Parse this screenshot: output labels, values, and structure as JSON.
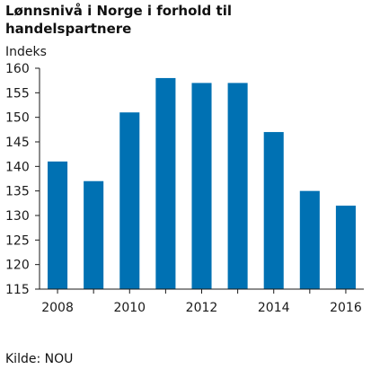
{
  "chart_data": {
    "type": "bar",
    "title": "Lønnsnivå i Norge i forhold til handelspartnere",
    "ylabel": "Indeks",
    "xlabel": "",
    "x": [
      2008,
      2009,
      2010,
      2011,
      2012,
      2013,
      2014,
      2015,
      2016
    ],
    "values": [
      141,
      137,
      151,
      158,
      157,
      157,
      147,
      135,
      132
    ],
    "x_tick_labels": [
      "2008",
      "2010",
      "2012",
      "2014",
      "2016"
    ],
    "y_ticks": [
      115,
      120,
      125,
      130,
      135,
      140,
      145,
      150,
      155,
      160
    ],
    "ylim": [
      115,
      160
    ],
    "grid": false,
    "bar_color": "#0071b3"
  },
  "source": "Kilde: NOU"
}
